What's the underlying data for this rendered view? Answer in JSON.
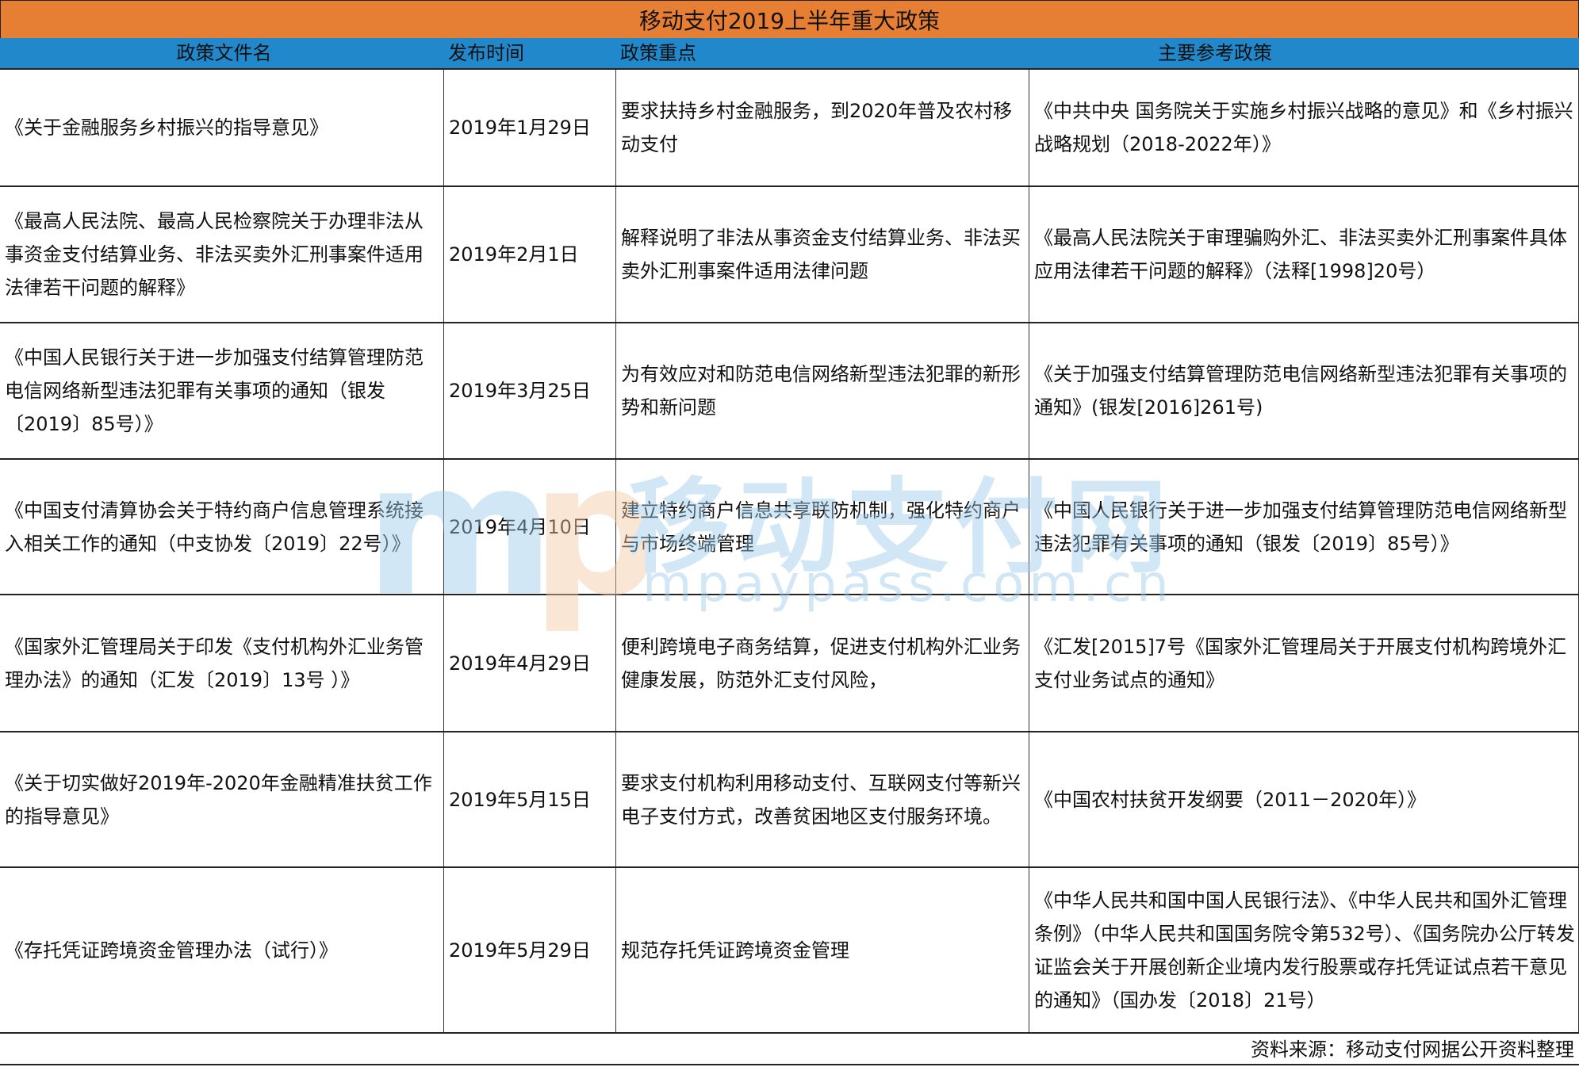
{
  "title": "移动支付2019上半年重大政策",
  "columns": [
    "政策文件名",
    "发布时间",
    "政策重点",
    "主要参考政策"
  ],
  "rows": [
    [
      "《关于金融服务乡村振兴的指导意见》",
      "2019年1月29日",
      "要求扶持乡村金融服务，到2020年普及农村移动支付",
      "《中共中央 国务院关于实施乡村振兴战略的意见》和《乡村振兴战略规划（2018-2022年）》"
    ],
    [
      "《最高人民法院、最高人民检察院关于办理非法从事资金支付结算业务、非法买卖外汇刑事案件适用法律若干问题的解释》",
      "2019年2月1日",
      "解释说明了非法从事资金支付结算业务、非法买卖外汇刑事案件适用法律问题",
      "《最高人民法院关于审理骗购外汇、非法买卖外汇刑事案件具体应用法律若干问题的解释》（法释[1998]20号）"
    ],
    [
      "《中国人民银行关于进一步加强支付结算管理防范电信网络新型违法犯罪有关事项的通知（银发〔2019〕85号）》",
      "2019年3月25日",
      "为有效应对和防范电信网络新型违法犯罪的新形势和新问题",
      "《关于加强支付结算管理防范电信网络新型违法犯罪有关事项的通知》(银发[2016]261号)"
    ],
    [
      "《中国支付清算协会关于特约商户信息管理系统接入相关工作的通知（中支协发〔2019〕22号）》",
      "2019年4月10日",
      "建立特约商户信息共享联防机制，强化特约商户与市场终端管理",
      "《中国人民银行关于进一步加强支付结算管理防范电信网络新型违法犯罪有关事项的通知（银发〔2019〕85号）》"
    ],
    [
      "《国家外汇管理局关于印发《支付机构外汇业务管理办法》的通知（汇发〔2019〕13号 ）》",
      "2019年4月29日",
      "便利跨境电子商务结算，促进支付机构外汇业务健康发展，防范外汇支付风险，",
      "《汇发[2015]7号《国家外汇管理局关于开展支付机构跨境外汇支付业务试点的通知》"
    ],
    [
      "《关于切实做好2019年-2020年金融精准扶贫工作的指导意见》",
      "2019年5月15日",
      "要求支付机构利用移动支付、互联网支付等新兴电子支付方式，改善贫困地区支付服务环境。",
      "《中国农村扶贫开发纲要（2011－2020年）》"
    ],
    [
      "《存托凭证跨境资金管理办法（试行）》",
      "2019年5月29日",
      "规范存托凭证跨境资金管理",
      "《中华人民共和国中国人民银行法》、《中华人民共和国外汇管理条例》（中华人民共和国国务院令第532号）、《国务院办公厅转发证监会关于开展创新企业境内发行股票或存托凭证试点若干意见的通知》（国办发〔2018〕21号）"
    ]
  ],
  "footer": "资料来源：移动支付网据公开资料整理",
  "watermark": {
    "logo": "mp",
    "cn": "移动支付网",
    "en": "mpaypass.com.cn"
  },
  "colors": {
    "title_bg": "#e67e33",
    "header_bg": "#2288cc"
  }
}
